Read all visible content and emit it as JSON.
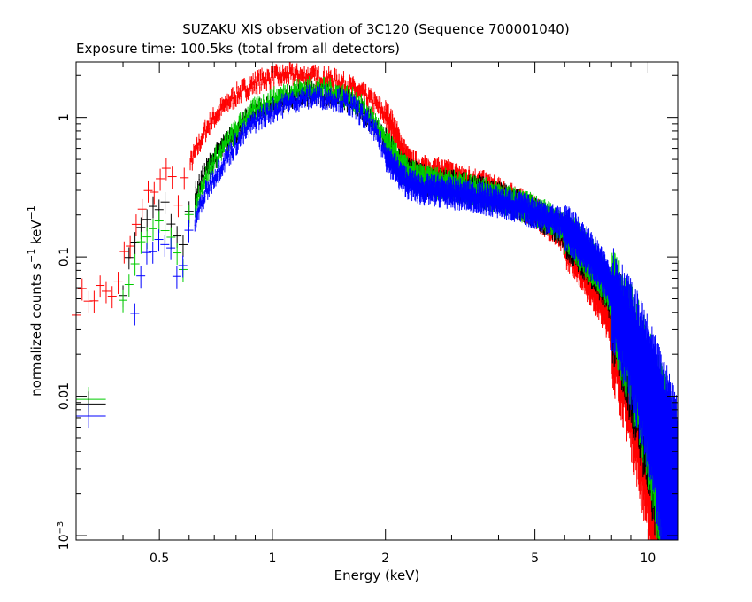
{
  "chart_data": {
    "type": "scatter",
    "title": "SUZAKU XIS observation of 3C120 (Sequence 700001040)",
    "subtitle": "Exposure time: 100.5ks (total from all detectors)",
    "xlabel": "Energy (keV)",
    "ylabel_prefix": "normalized counts s",
    "ylabel_sup1": "−1",
    "ylabel_mid": " keV",
    "ylabel_sup2": "−1",
    "x_scale": "log",
    "y_scale": "log",
    "xlim": [
      0.3,
      12.0
    ],
    "ylim": [
      0.00093,
      2.5
    ],
    "x_ticks": [
      {
        "value": 0.5,
        "label": "0.5"
      },
      {
        "value": 1,
        "label": "1"
      },
      {
        "value": 2,
        "label": "2"
      },
      {
        "value": 5,
        "label": "5"
      },
      {
        "value": 10,
        "label": "10"
      }
    ],
    "y_ticks": [
      {
        "value": 0.001,
        "label_base": "10",
        "label_exp": "−3"
      },
      {
        "value": 0.01,
        "label_base": "0.01",
        "label_exp": ""
      },
      {
        "value": 0.1,
        "label_base": "0.1",
        "label_exp": ""
      },
      {
        "value": 1,
        "label_base": "1",
        "label_exp": ""
      }
    ],
    "grid": false,
    "series": [
      {
        "color": "#ff0000",
        "points": [
          [
            0.3,
            0.047
          ],
          [
            0.32,
            0.052
          ],
          [
            0.35,
            0.057
          ],
          [
            0.37,
            0.055
          ],
          [
            0.39,
            0.06
          ],
          [
            0.4,
            0.095
          ],
          [
            0.42,
            0.12
          ],
          [
            0.44,
            0.18
          ],
          [
            0.46,
            0.24
          ],
          [
            0.48,
            0.31
          ],
          [
            0.5,
            0.38
          ],
          [
            0.52,
            0.4
          ],
          [
            0.54,
            0.35
          ],
          [
            0.56,
            0.28
          ],
          [
            0.58,
            0.33
          ],
          [
            0.6,
            0.45
          ],
          [
            0.63,
            0.6
          ],
          [
            0.66,
            0.8
          ],
          [
            0.7,
            1.0
          ],
          [
            0.75,
            1.25
          ],
          [
            0.8,
            1.45
          ],
          [
            0.85,
            1.62
          ],
          [
            0.9,
            1.78
          ],
          [
            0.95,
            1.88
          ],
          [
            1.0,
            1.95
          ],
          [
            1.1,
            2.02
          ],
          [
            1.2,
            2.0
          ],
          [
            1.3,
            1.96
          ],
          [
            1.4,
            1.9
          ],
          [
            1.5,
            1.82
          ],
          [
            1.6,
            1.68
          ],
          [
            1.7,
            1.52
          ],
          [
            1.8,
            1.38
          ],
          [
            1.9,
            1.22
          ],
          [
            2.0,
            1.05
          ],
          [
            2.1,
            0.85
          ],
          [
            2.2,
            0.62
          ],
          [
            2.3,
            0.48
          ],
          [
            2.5,
            0.42
          ],
          [
            2.8,
            0.4
          ],
          [
            3.0,
            0.38
          ],
          [
            3.5,
            0.34
          ],
          [
            4.0,
            0.29
          ],
          [
            4.5,
            0.25
          ],
          [
            5.0,
            0.21
          ],
          [
            5.5,
            0.17
          ],
          [
            6.0,
            0.13
          ],
          [
            6.5,
            0.1
          ],
          [
            7.0,
            0.07
          ],
          [
            7.5,
            0.05
          ],
          [
            8.0,
            0.033
          ],
          [
            8.5,
            0.022
          ],
          [
            9.0,
            0.014
          ],
          [
            9.5,
            0.0085
          ],
          [
            10.0,
            0.0055
          ],
          [
            10.5,
            0.0038
          ],
          [
            11.0,
            0.0028
          ],
          [
            11.5,
            0.002
          ],
          [
            12.0,
            0.0015
          ]
        ]
      },
      {
        "color": "#000000",
        "points": [
          [
            0.4,
            0.065
          ],
          [
            0.42,
            0.1
          ],
          [
            0.44,
            0.17
          ],
          [
            0.46,
            0.22
          ],
          [
            0.48,
            0.26
          ],
          [
            0.5,
            0.22
          ],
          [
            0.52,
            0.2
          ],
          [
            0.54,
            0.16
          ],
          [
            0.56,
            0.13
          ],
          [
            0.58,
            0.15
          ],
          [
            0.6,
            0.22
          ],
          [
            0.63,
            0.3
          ],
          [
            0.66,
            0.4
          ],
          [
            0.7,
            0.52
          ],
          [
            0.75,
            0.65
          ],
          [
            0.8,
            0.8
          ],
          [
            0.85,
            0.95
          ],
          [
            0.9,
            1.08
          ],
          [
            1.0,
            1.25
          ],
          [
            1.1,
            1.38
          ],
          [
            1.2,
            1.45
          ],
          [
            1.3,
            1.48
          ],
          [
            1.4,
            1.45
          ],
          [
            1.5,
            1.4
          ],
          [
            1.6,
            1.3
          ],
          [
            1.7,
            1.18
          ],
          [
            1.8,
            1.0
          ],
          [
            1.9,
            0.85
          ],
          [
            2.0,
            0.65
          ],
          [
            2.1,
            0.55
          ],
          [
            2.2,
            0.45
          ],
          [
            2.3,
            0.4
          ],
          [
            2.5,
            0.36
          ],
          [
            2.8,
            0.34
          ],
          [
            3.0,
            0.33
          ],
          [
            3.5,
            0.3
          ],
          [
            4.0,
            0.27
          ],
          [
            4.5,
            0.24
          ],
          [
            5.0,
            0.21
          ],
          [
            5.5,
            0.18
          ],
          [
            6.0,
            0.15
          ],
          [
            6.5,
            0.12
          ],
          [
            7.0,
            0.095
          ],
          [
            7.5,
            0.072
          ],
          [
            8.0,
            0.052
          ],
          [
            8.5,
            0.036
          ],
          [
            9.0,
            0.024
          ],
          [
            9.5,
            0.016
          ],
          [
            10.0,
            0.011
          ],
          [
            10.5,
            0.0075
          ],
          [
            11.0,
            0.0052
          ],
          [
            11.5,
            0.0036
          ],
          [
            12.0,
            0.0025
          ]
        ]
      },
      {
        "color": "#00cc00",
        "points": [
          [
            0.4,
            0.055
          ],
          [
            0.42,
            0.08
          ],
          [
            0.44,
            0.13
          ],
          [
            0.46,
            0.16
          ],
          [
            0.48,
            0.19
          ],
          [
            0.5,
            0.17
          ],
          [
            0.52,
            0.15
          ],
          [
            0.54,
            0.11
          ],
          [
            0.56,
            0.085
          ],
          [
            0.58,
            0.1
          ],
          [
            0.6,
            0.17
          ],
          [
            0.63,
            0.26
          ],
          [
            0.66,
            0.36
          ],
          [
            0.7,
            0.5
          ],
          [
            0.75,
            0.64
          ],
          [
            0.8,
            0.82
          ],
          [
            0.85,
            1.0
          ],
          [
            0.9,
            1.15
          ],
          [
            1.0,
            1.35
          ],
          [
            1.1,
            1.5
          ],
          [
            1.2,
            1.6
          ],
          [
            1.3,
            1.62
          ],
          [
            1.4,
            1.58
          ],
          [
            1.5,
            1.5
          ],
          [
            1.6,
            1.4
          ],
          [
            1.7,
            1.25
          ],
          [
            1.8,
            1.05
          ],
          [
            1.9,
            0.88
          ],
          [
            2.0,
            0.66
          ],
          [
            2.1,
            0.55
          ],
          [
            2.2,
            0.45
          ],
          [
            2.3,
            0.4
          ],
          [
            2.5,
            0.36
          ],
          [
            2.8,
            0.34
          ],
          [
            3.0,
            0.33
          ],
          [
            3.5,
            0.3
          ],
          [
            4.0,
            0.27
          ],
          [
            4.5,
            0.24
          ],
          [
            5.0,
            0.22
          ],
          [
            5.5,
            0.19
          ],
          [
            6.0,
            0.16
          ],
          [
            6.5,
            0.13
          ],
          [
            7.0,
            0.1
          ],
          [
            7.5,
            0.078
          ],
          [
            8.0,
            0.058
          ],
          [
            8.5,
            0.042
          ],
          [
            9.0,
            0.03
          ],
          [
            9.5,
            0.021
          ],
          [
            10.0,
            0.014
          ],
          [
            10.5,
            0.0095
          ],
          [
            11.0,
            0.0065
          ],
          [
            11.5,
            0.0045
          ],
          [
            12.0,
            0.0032
          ]
        ]
      },
      {
        "color": "#0000ff",
        "points": [
          [
            0.43,
            0.036
          ],
          [
            0.44,
            0.06
          ],
          [
            0.46,
            0.1
          ],
          [
            0.48,
            0.13
          ],
          [
            0.5,
            0.14
          ],
          [
            0.52,
            0.13
          ],
          [
            0.54,
            0.11
          ],
          [
            0.56,
            0.075
          ],
          [
            0.58,
            0.085
          ],
          [
            0.6,
            0.13
          ],
          [
            0.63,
            0.2
          ],
          [
            0.66,
            0.28
          ],
          [
            0.7,
            0.38
          ],
          [
            0.75,
            0.5
          ],
          [
            0.8,
            0.65
          ],
          [
            0.85,
            0.8
          ],
          [
            0.9,
            0.95
          ],
          [
            1.0,
            1.12
          ],
          [
            1.1,
            1.28
          ],
          [
            1.2,
            1.38
          ],
          [
            1.3,
            1.42
          ],
          [
            1.4,
            1.4
          ],
          [
            1.5,
            1.35
          ],
          [
            1.6,
            1.25
          ],
          [
            1.7,
            1.1
          ],
          [
            1.8,
            0.92
          ],
          [
            1.9,
            0.74
          ],
          [
            2.0,
            0.55
          ],
          [
            2.1,
            0.45
          ],
          [
            2.2,
            0.38
          ],
          [
            2.3,
            0.34
          ],
          [
            2.5,
            0.31
          ],
          [
            2.8,
            0.3
          ],
          [
            3.0,
            0.29
          ],
          [
            3.5,
            0.27
          ],
          [
            4.0,
            0.25
          ],
          [
            4.5,
            0.23
          ],
          [
            5.0,
            0.21
          ],
          [
            5.5,
            0.19
          ],
          [
            6.0,
            0.17
          ],
          [
            6.5,
            0.14
          ],
          [
            7.0,
            0.11
          ],
          [
            7.5,
            0.085
          ],
          [
            8.0,
            0.063
          ],
          [
            8.5,
            0.046
          ],
          [
            9.0,
            0.032
          ],
          [
            9.5,
            0.023
          ],
          [
            10.0,
            0.016
          ],
          [
            10.5,
            0.011
          ],
          [
            11.0,
            0.0078
          ],
          [
            11.5,
            0.0055
          ],
          [
            12.0,
            0.004
          ]
        ]
      }
    ],
    "marker_key": [
      {
        "color": "#00cc00",
        "x_range": [
          0.3,
          0.36
        ],
        "y": 0.0095
      },
      {
        "color": "#000000",
        "x_range": [
          0.3,
          0.36
        ],
        "y": 0.0088
      },
      {
        "color": "#0000ff",
        "x_range": [
          0.3,
          0.36
        ],
        "y": 0.0072
      }
    ]
  }
}
